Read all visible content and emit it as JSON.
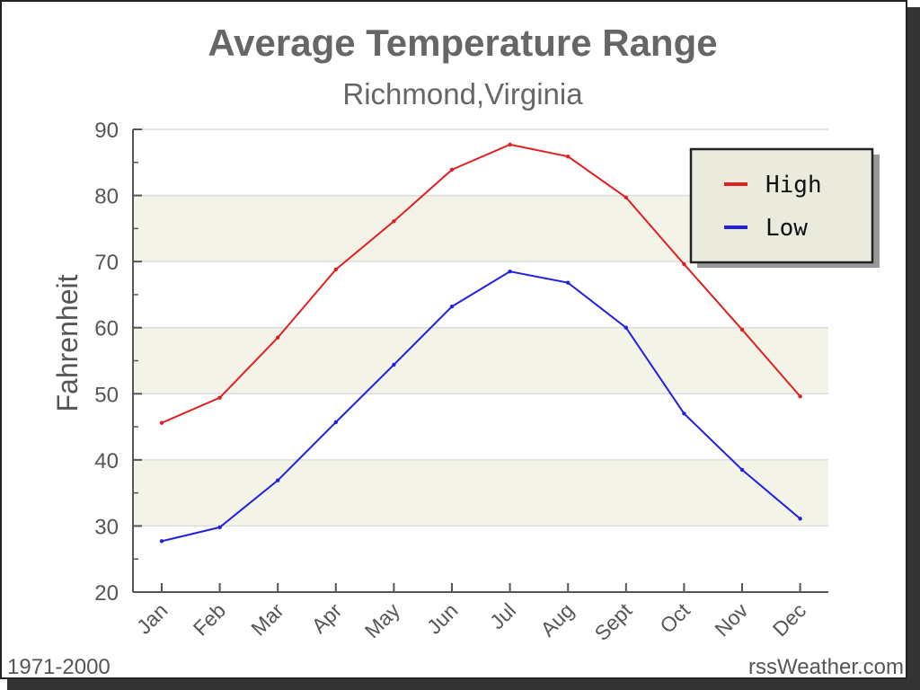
{
  "chart_data": {
    "type": "line",
    "title": "Average Temperature Range",
    "subtitle": "Richmond,Virginia",
    "xlabel": "",
    "ylabel": "Fahrenheit",
    "ylim": [
      20,
      90
    ],
    "yticks": [
      20,
      30,
      40,
      50,
      60,
      70,
      80,
      90
    ],
    "categories": [
      "Jan",
      "Feb",
      "Mar",
      "Apr",
      "May",
      "Jun",
      "Jul",
      "Aug",
      "Sept",
      "Oct",
      "Nov",
      "Dec"
    ],
    "series": [
      {
        "name": "High",
        "color": "#e02020",
        "values": [
          45.6,
          49.4,
          58.5,
          68.8,
          76.1,
          83.9,
          87.7,
          85.9,
          79.7,
          69.6,
          59.7,
          49.6
        ]
      },
      {
        "name": "Low",
        "color": "#2020e0",
        "values": [
          27.7,
          29.8,
          36.9,
          45.7,
          54.4,
          63.2,
          68.5,
          66.8,
          60.0,
          47.0,
          38.5,
          31.1
        ]
      }
    ],
    "grid": true,
    "legend": "top-right",
    "footer_left": "1971-2000",
    "footer_right": "rssWeather.com"
  }
}
